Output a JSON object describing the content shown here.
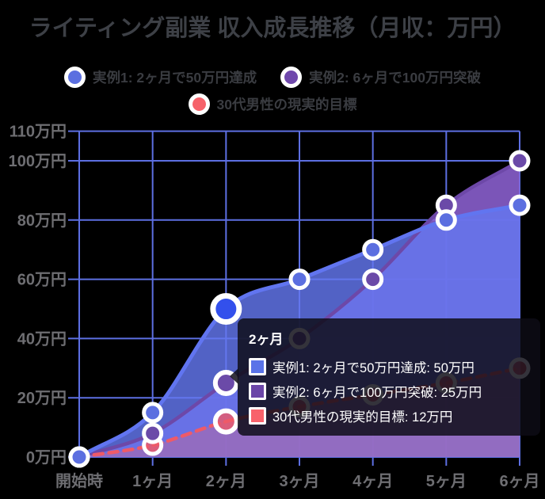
{
  "title": "ライティング副業 収入成長推移（月収：万円）",
  "legend": {
    "items": [
      {
        "label": "実例1: 2ヶ月で50万円達成",
        "color": "#5b6fe0"
      },
      {
        "label": "実例2: 6ヶ月で100万円突破",
        "color": "#6f48ac"
      },
      {
        "label": "30代男性の現実的目標",
        "color": "#f6626a"
      }
    ]
  },
  "chart_data": {
    "type": "area",
    "title": "ライティング副業 収入成長推移（月収：万円）",
    "categories": [
      "開始時",
      "1ヶ月",
      "2ヶ月",
      "3ヶ月",
      "4ヶ月",
      "5ヶ月",
      "6ヶ月"
    ],
    "series": [
      {
        "name": "実例1: 2ヶ月で50万円達成",
        "values": [
          0,
          15,
          50,
          60,
          70,
          80,
          85
        ],
        "line_color": "#6175f0",
        "fill_color": "rgba(100,120,240,0.82)",
        "point_color": "#5c6fe0",
        "hover_point_color": "#3350ec",
        "dashed": false
      },
      {
        "name": "実例2: 6ヶ月で100万円突破",
        "values": [
          0,
          8,
          25,
          40,
          60,
          85,
          100
        ],
        "line_color": "#6d48a8",
        "fill_color": "rgba(140,97,209,0.88)",
        "point_color": "#6b4aa8",
        "hover_point_color": "#6b4aa8",
        "dashed": false
      },
      {
        "name": "30代男性の現実的目標",
        "values": [
          0,
          4,
          12,
          17,
          21,
          25,
          30
        ],
        "line_color": "#ee5a68",
        "fill_color": "rgba(244,96,110,0.30)",
        "point_color": "#ee5a68",
        "hover_point_color": "#ee5a68",
        "dashed": true
      }
    ],
    "xlabel": "",
    "ylabel": "",
    "ylim": [
      0,
      110
    ],
    "y_ticks": [
      {
        "value": 0,
        "label": "0万円"
      },
      {
        "value": 20,
        "label": "20万円"
      },
      {
        "value": 40,
        "label": "40万円"
      },
      {
        "value": 60,
        "label": "60万円"
      },
      {
        "value": 80,
        "label": "80万円"
      },
      {
        "value": 100,
        "label": "100万円"
      },
      {
        "value": 110,
        "label": "110万円"
      }
    ],
    "grid": true,
    "legend_position": "top",
    "hover_index": 2
  },
  "tooltip": {
    "title": "2ヶ月",
    "rows": [
      {
        "label": "実例1: 2ヶ月で50万円達成: 50万円",
        "color": "#5a73e8"
      },
      {
        "label": "実例2: 6ヶ月で100万円突破: 25万円",
        "color": "#6b46a8"
      },
      {
        "label": "30代男性の現実的目標: 12万円",
        "color": "#f8626b"
      }
    ]
  },
  "colors": {
    "background": "#000000",
    "grid": "#5d6fe2",
    "axis_text": "#6e6e72",
    "title_text": "#3d4046",
    "legend_text": "#3a3c41",
    "tooltip_bg": "rgba(13,12,22,0.84)",
    "tooltip_text": "#ffffff",
    "point_ring": "#ffffff"
  }
}
